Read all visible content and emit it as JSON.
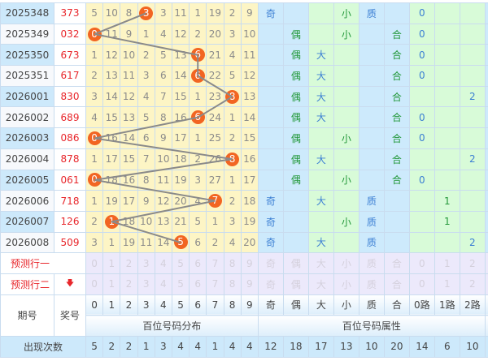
{
  "colors": {
    "ball": "#f26522",
    "line": "#8a8a8a",
    "award": "#e8262b",
    "attr_blue": "#3b7fd3",
    "attr_green": "#23983a"
  },
  "rows": [
    {
      "issue": "2025348",
      "award": "373",
      "hit": 3,
      "cells": [
        "5",
        "10",
        "8",
        "3",
        "3",
        "11",
        "1",
        "19",
        "2",
        "9"
      ],
      "attrs": [
        "奇",
        "",
        "",
        "小",
        "质",
        "",
        "0",
        "",
        ""
      ]
    },
    {
      "issue": "2025349",
      "award": "032",
      "hit": 0,
      "cells": [
        "0",
        "11",
        "9",
        "1",
        "4",
        "12",
        "2",
        "20",
        "3",
        "10"
      ],
      "attrs": [
        "",
        "偶",
        "",
        "小",
        "",
        "合",
        "0",
        "",
        ""
      ]
    },
    {
      "issue": "2025350",
      "award": "673",
      "hit": 6,
      "cells": [
        "1",
        "12",
        "10",
        "2",
        "5",
        "13",
        "6",
        "21",
        "4",
        "11"
      ],
      "attrs": [
        "",
        "偶",
        "大",
        "",
        "",
        "合",
        "0",
        "",
        ""
      ]
    },
    {
      "issue": "2025351",
      "award": "617",
      "hit": 6,
      "cells": [
        "2",
        "13",
        "11",
        "3",
        "6",
        "14",
        "6",
        "22",
        "5",
        "12"
      ],
      "attrs": [
        "",
        "偶",
        "大",
        "",
        "",
        "合",
        "0",
        "",
        ""
      ]
    },
    {
      "issue": "2026001",
      "award": "830",
      "hit": 8,
      "cells": [
        "3",
        "14",
        "12",
        "4",
        "7",
        "15",
        "1",
        "23",
        "8",
        "13"
      ],
      "attrs": [
        "",
        "偶",
        "大",
        "",
        "",
        "合",
        "",
        "",
        "2"
      ]
    },
    {
      "issue": "2026002",
      "award": "689",
      "hit": 6,
      "cells": [
        "4",
        "15",
        "13",
        "5",
        "8",
        "16",
        "6",
        "24",
        "1",
        "14"
      ],
      "attrs": [
        "",
        "偶",
        "大",
        "",
        "",
        "合",
        "0",
        "",
        ""
      ]
    },
    {
      "issue": "2026003",
      "award": "086",
      "hit": 0,
      "cells": [
        "0",
        "16",
        "14",
        "6",
        "9",
        "17",
        "1",
        "25",
        "2",
        "15"
      ],
      "attrs": [
        "",
        "偶",
        "",
        "小",
        "",
        "合",
        "0",
        "",
        ""
      ]
    },
    {
      "issue": "2026004",
      "award": "878",
      "hit": 8,
      "cells": [
        "1",
        "17",
        "15",
        "7",
        "10",
        "18",
        "2",
        "26",
        "8",
        "16"
      ],
      "attrs": [
        "",
        "偶",
        "大",
        "",
        "",
        "合",
        "",
        "",
        "2"
      ]
    },
    {
      "issue": "2026005",
      "award": "061",
      "hit": 0,
      "cells": [
        "0",
        "18",
        "16",
        "8",
        "11",
        "19",
        "3",
        "27",
        "1",
        "17"
      ],
      "attrs": [
        "",
        "偶",
        "",
        "小",
        "",
        "合",
        "0",
        "",
        ""
      ]
    },
    {
      "issue": "2026006",
      "award": "718",
      "hit": 7,
      "cells": [
        "1",
        "19",
        "17",
        "9",
        "12",
        "20",
        "4",
        "7",
        "2",
        "18"
      ],
      "attrs": [
        "奇",
        "",
        "大",
        "",
        "质",
        "",
        "",
        "1",
        ""
      ]
    },
    {
      "issue": "2026007",
      "award": "126",
      "hit": 1,
      "cells": [
        "2",
        "1",
        "18",
        "10",
        "13",
        "21",
        "5",
        "1",
        "3",
        "19"
      ],
      "attrs": [
        "奇",
        "",
        "",
        "小",
        "质",
        "",
        "",
        "1",
        ""
      ]
    },
    {
      "issue": "2026008",
      "award": "509",
      "hit": 5,
      "cells": [
        "3",
        "1",
        "19",
        "11",
        "14",
        "5",
        "6",
        "2",
        "4",
        "20"
      ],
      "attrs": [
        "奇",
        "",
        "大",
        "",
        "质",
        "",
        "",
        "",
        "2"
      ]
    }
  ],
  "predict": {
    "row1_label": "预测行一",
    "row2_label": "预测行二",
    "digits": [
      "0",
      "1",
      "2",
      "3",
      "4",
      "5",
      "6",
      "7",
      "8",
      "9"
    ],
    "attrs": [
      "奇",
      "偶",
      "大",
      "小",
      "质",
      "合",
      "0",
      "1",
      "2"
    ]
  },
  "header": {
    "issue": "期号",
    "award": "奖号",
    "digits": [
      "0",
      "1",
      "2",
      "3",
      "4",
      "5",
      "6",
      "7",
      "8",
      "9"
    ],
    "attrs": [
      "奇",
      "偶",
      "大",
      "小",
      "质",
      "合",
      "0路",
      "1路",
      "2路"
    ],
    "group_digits": "百位号码分布",
    "group_attrs": "百位号码属性"
  },
  "stats": {
    "label": "出现次数",
    "values": [
      "5",
      "2",
      "2",
      "1",
      "3",
      "4",
      "4",
      "1",
      "4",
      "4",
      "12",
      "18",
      "17",
      "13",
      "10",
      "20",
      "14",
      "6",
      "10"
    ]
  }
}
